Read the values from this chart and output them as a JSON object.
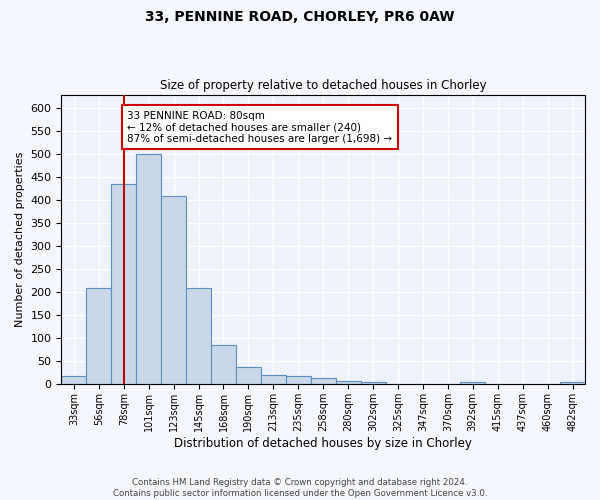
{
  "title1": "33, PENNINE ROAD, CHORLEY, PR6 0AW",
  "title2": "Size of property relative to detached houses in Chorley",
  "xlabel": "Distribution of detached houses by size in Chorley",
  "ylabel": "Number of detached properties",
  "bar_labels": [
    "33sqm",
    "56sqm",
    "78sqm",
    "101sqm",
    "123sqm",
    "145sqm",
    "168sqm",
    "190sqm",
    "213sqm",
    "235sqm",
    "258sqm",
    "280sqm",
    "302sqm",
    "325sqm",
    "347sqm",
    "370sqm",
    "392sqm",
    "415sqm",
    "437sqm",
    "460sqm",
    "482sqm"
  ],
  "bar_values": [
    18,
    210,
    435,
    500,
    410,
    210,
    85,
    37,
    20,
    18,
    13,
    8,
    5,
    2,
    2,
    1,
    6,
    1,
    1,
    1,
    6
  ],
  "bar_color": "#c8d8e8",
  "bar_edge_color": "#5a8fc0",
  "vline_x_index": 2,
  "vline_color": "#cc0000",
  "annotation_text": "33 PENNINE ROAD: 80sqm\n← 12% of detached houses are smaller (240)\n87% of semi-detached houses are larger (1,698) →",
  "annotation_box_color": "#ffffff",
  "annotation_box_edge": "#cc0000",
  "ylim": [
    0,
    630
  ],
  "yticks": [
    0,
    50,
    100,
    150,
    200,
    250,
    300,
    350,
    400,
    450,
    500,
    550,
    600
  ],
  "footer": "Contains HM Land Registry data © Crown copyright and database right 2024.\nContains public sector information licensed under the Open Government Licence v3.0.",
  "bg_color": "#eef2fa",
  "fig_color": "#f5f7ff",
  "grid_color": "#ffffff"
}
